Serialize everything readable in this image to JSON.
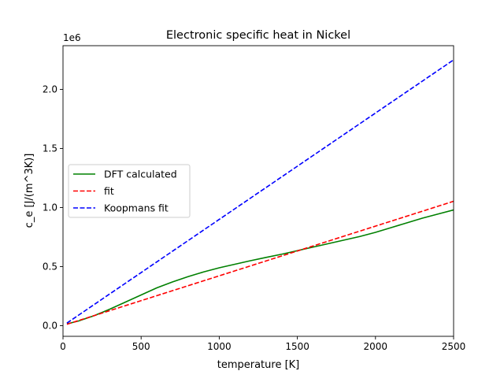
{
  "chart_data": {
    "type": "line",
    "title": "Electronic specific heat in Nickel",
    "xlabel": "temperature [K]",
    "ylabel": "c_e [J/(m^3K)]",
    "offset_text": "1e6",
    "xlim": [
      0,
      2500
    ],
    "ylim": [
      -0.09,
      2.37
    ],
    "y_scale_factor": 1000000,
    "xticks": [
      0,
      500,
      1000,
      1500,
      2000,
      2500
    ],
    "xtick_labels": [
      "0",
      "500",
      "1000",
      "1500",
      "2000",
      "2500"
    ],
    "yticks": [
      0.0,
      0.5,
      1.0,
      1.5,
      2.0
    ],
    "ytick_labels": [
      "0.0",
      "0.5",
      "1.0",
      "1.5",
      "2.0"
    ],
    "grid": false,
    "legend_position": "center-left",
    "series": [
      {
        "name": "DFT calculated",
        "color": "#008000",
        "style": "solid",
        "x": [
          25,
          100,
          200,
          300,
          400,
          500,
          600,
          700,
          800,
          900,
          1000,
          1100,
          1200,
          1300,
          1400,
          1500,
          1600,
          1700,
          1800,
          1900,
          2000,
          2100,
          2200,
          2300,
          2400,
          2500
        ],
        "y": [
          0.015,
          0.04,
          0.085,
          0.14,
          0.2,
          0.26,
          0.32,
          0.37,
          0.415,
          0.455,
          0.49,
          0.52,
          0.55,
          0.578,
          0.605,
          0.635,
          0.665,
          0.695,
          0.725,
          0.755,
          0.79,
          0.83,
          0.87,
          0.91,
          0.945,
          0.98
        ]
      },
      {
        "name": "fit",
        "color": "#ff0000",
        "style": "dashed",
        "x": [
          25,
          2500
        ],
        "y": [
          0.012,
          1.053
        ]
      },
      {
        "name": "Koopmans fit",
        "color": "#0000ff",
        "style": "dashed",
        "x": [
          25,
          2500
        ],
        "y": [
          0.022,
          2.25
        ]
      }
    ]
  }
}
